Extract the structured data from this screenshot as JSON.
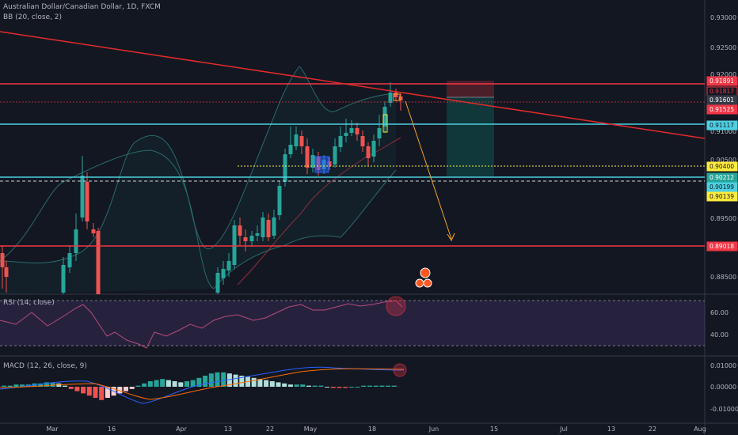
{
  "header": {
    "symbol_title": "Australian Dollar/Canadian Dollar, 1D, FXCM",
    "bb_label": "BB (20, close, 2)"
  },
  "indicators": {
    "rsi_label": "RSI (14, close)",
    "macd_label": "MACD (12, 26, close, 9)"
  },
  "price_axis": {
    "ticks": [
      "0.93000",
      "0.92500",
      "0.92000",
      "0.91500",
      "0.91000",
      "0.90500",
      "0.90000",
      "0.89500",
      "0.88500"
    ]
  },
  "price_tags": [
    {
      "value": "0.91891",
      "kind": "red-line"
    },
    {
      "value": "0.91817",
      "kind": "red-outline"
    },
    {
      "value": "0.91601",
      "kind": "gray"
    },
    {
      "value": "0.91525",
      "kind": "red-fill"
    },
    {
      "value": "0.91117",
      "kind": "cyan"
    },
    {
      "value": "0.90400",
      "kind": "yellow"
    },
    {
      "value": "0.90212",
      "kind": "green"
    },
    {
      "value": "0.90199",
      "kind": "cyan"
    },
    {
      "value": "0.90139",
      "kind": "yellow"
    },
    {
      "value": "0.89018",
      "kind": "red-line"
    }
  ],
  "rsi_axis": {
    "ticks": [
      "60.00",
      "40.00"
    ]
  },
  "macd_axis": {
    "ticks": [
      "0.01000",
      "0.00000",
      "-0.01000"
    ]
  },
  "time_axis": {
    "labels": [
      "Mar",
      "16",
      "Apr",
      "13",
      "22",
      "May",
      "18",
      "Jun",
      "15",
      "Jul",
      "13",
      "22",
      "Aug"
    ]
  },
  "colors": {
    "background": "#131722",
    "bull": "#26a69a",
    "bear": "#ef5350",
    "red_line": "#f23645",
    "cyan_line": "#4dd0e1",
    "yellow_line": "#ffeb3b",
    "arrow": "#f5a623",
    "rsi_line": "#b94a7a",
    "macd_line": "#2962ff",
    "signal_line": "#ff6d00"
  }
}
